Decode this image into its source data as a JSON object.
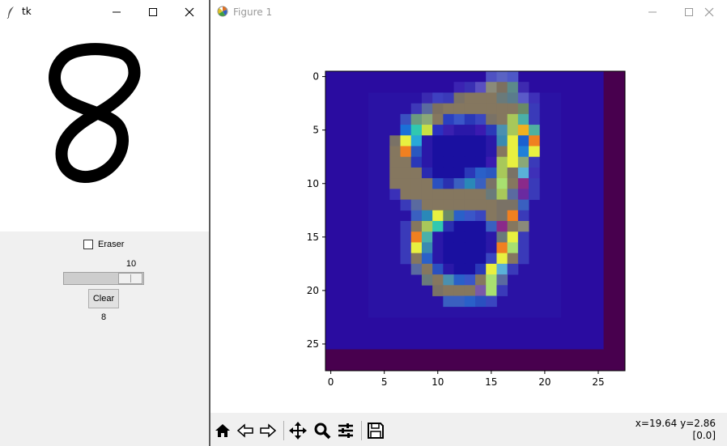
{
  "tk_window": {
    "title": "tk",
    "eraser_label": "Eraser",
    "eraser_checked": false,
    "slider_value": "10",
    "clear_label": "Clear",
    "prediction": "8",
    "icons": [
      "feather-icon",
      "minimize-icon",
      "maximize-icon",
      "close-icon"
    ]
  },
  "figure_window": {
    "title": "Figure 1",
    "toolbar": [
      "home-icon",
      "back-icon",
      "forward-icon",
      "pan-icon",
      "zoom-icon",
      "configure-subplots-icon",
      "save-icon"
    ],
    "coords_line1": "x=19.64 y=2.86",
    "coords_line2": "[0.0]"
  },
  "chart_data": {
    "type": "heatmap",
    "title": "",
    "x_ticks": [
      "0",
      "5",
      "10",
      "15",
      "20",
      "25"
    ],
    "y_ticks": [
      "0",
      "5",
      "10",
      "15",
      "20",
      "25"
    ],
    "xlim": [
      -0.5,
      27.5
    ],
    "ylim": [
      27.5,
      -0.5
    ],
    "grid": false,
    "shape": [
      28,
      28
    ],
    "background_color": "#2a0ca0",
    "border_color": "#48004e",
    "border_region": {
      "right_columns": [
        26,
        27
      ],
      "bottom_rows": [
        26,
        27
      ]
    },
    "overlay_rows": [
      {
        "row": 0,
        "cells": {
          "15": "#4f52c2",
          "16": "#5a63c4",
          "17": "#4e58c8"
        }
      },
      {
        "row": 1,
        "cells": {
          "12": "#3b23b2",
          "13": "#3a30b3",
          "14": "#5a50c0",
          "15": "#8a8a7a",
          "16": "#7c7060",
          "17": "#5c8a8a",
          "18": "#3e2ab0"
        }
      },
      {
        "row": 2,
        "cells": {
          "9": "#3a2ab0",
          "10": "#3e40c0",
          "11": "#3a3ab9",
          "12": "#7a7266",
          "13": "#85775f",
          "14": "#85775f",
          "15": "#85775f",
          "16": "#6a7a7a",
          "17": "#5a7c8c",
          "18": "#5a5ac8",
          "19": "#3e30b8"
        }
      },
      {
        "row": 3,
        "cells": {
          "8": "#3e38b8",
          "9": "#5a6aa0",
          "10": "#7c7060",
          "11": "#85775f",
          "12": "#85775f",
          "13": "#85775f",
          "14": "#85775f",
          "15": "#85775f",
          "16": "#85775f",
          "17": "#85775f",
          "18": "#6a8a66",
          "19": "#3a3ab9"
        }
      },
      {
        "row": 4,
        "cells": {
          "7": "#3a50c0",
          "8": "#6a9a80",
          "9": "#8aa878",
          "10": "#85775f",
          "11": "#2a40c0",
          "12": "#3a56c8",
          "13": "#2a38b8",
          "14": "#3a46c0",
          "15": "#7a7266",
          "16": "#85775f",
          "17": "#a8c85a",
          "18": "#4ab0a8",
          "19": "#3a3ab9"
        }
      },
      {
        "row": 5,
        "cells": {
          "7": "#1a70d8",
          "8": "#30c8b0",
          "9": "#c8e044",
          "10": "#2a30c0",
          "11": "#3a20b0",
          "12": "#2a18a8",
          "13": "#2a18a8",
          "14": "#3a1ab0",
          "15": "#2a3ab8",
          "16": "#4a90b0",
          "17": "#a8c85a",
          "18": "#f0b020",
          "19": "#50b0a0"
        }
      },
      {
        "row": 6,
        "cells": {
          "6": "#7a7266",
          "7": "#e8f040",
          "8": "#28a8d8",
          "9": "#2a18a8",
          "10": "#1a10a0",
          "11": "#1a10a0",
          "12": "#1a10a0",
          "13": "#1a10a0",
          "14": "#1a10a0",
          "15": "#2a18a8",
          "16": "#3a8ab0",
          "17": "#e8f040",
          "18": "#1a60d0",
          "19": "#f08020"
        }
      },
      {
        "row": 7,
        "cells": {
          "6": "#85775f",
          "7": "#f08020",
          "8": "#2a58c0",
          "9": "#2a18a8",
          "10": "#1a10a0",
          "11": "#1a10a0",
          "12": "#1a10a0",
          "13": "#1a10a0",
          "14": "#1a10a0",
          "15": "#2a18a8",
          "16": "#85775f",
          "17": "#e8f040",
          "18": "#2080d8",
          "19": "#e8f040"
        }
      },
      {
        "row": 8,
        "cells": {
          "6": "#85775f",
          "7": "#85775f",
          "8": "#2a38b8",
          "9": "#2a18a8",
          "10": "#1a10a0",
          "11": "#1a10a0",
          "12": "#1a10a0",
          "13": "#1a10a0",
          "14": "#1a10a0",
          "15": "#3a1ab0",
          "16": "#a8c85a",
          "17": "#e8f040",
          "18": "#8aa878",
          "19": "#3a3ab9"
        }
      },
      {
        "row": 9,
        "cells": {
          "6": "#85775f",
          "7": "#85775f",
          "8": "#85775f",
          "9": "#2a2ab0",
          "10": "#1a10a0",
          "11": "#1a10a0",
          "12": "#1a10a0",
          "13": "#2a38b8",
          "14": "#2a60c8",
          "15": "#2a58c0",
          "16": "#a8c85a",
          "17": "#7a7266",
          "18": "#5ab0d8",
          "19": "#3e30b8"
        }
      },
      {
        "row": 10,
        "cells": {
          "6": "#85775f",
          "7": "#85775f",
          "8": "#85775f",
          "9": "#85775f",
          "10": "#2a50c0",
          "11": "#2a30b0",
          "12": "#3a60c0",
          "13": "#2a88b8",
          "14": "#3a60c0",
          "15": "#7a7266",
          "16": "#a8e070",
          "17": "#85775f",
          "18": "#8a2a8a",
          "19": "#3a3ab9"
        }
      },
      {
        "row": 11,
        "cells": {
          "6": "#3a30b8",
          "7": "#85775f",
          "8": "#85775f",
          "9": "#85775f",
          "10": "#85775f",
          "11": "#85775f",
          "12": "#85775f",
          "13": "#85775f",
          "14": "#85775f",
          "15": "#6a7a7a",
          "16": "#a8c85a",
          "17": "#5a6aa0",
          "18": "#6a2aa0",
          "19": "#3a3ab9"
        }
      },
      {
        "row": 12,
        "cells": {
          "7": "#3a3ab9",
          "8": "#5a6aa0",
          "9": "#85775f",
          "10": "#85775f",
          "11": "#85775f",
          "12": "#85775f",
          "13": "#85775f",
          "14": "#85775f",
          "15": "#85775f",
          "16": "#7a7266",
          "17": "#7a7266",
          "18": "#3a60c0"
        }
      },
      {
        "row": 13,
        "cells": {
          "8": "#3a60c0",
          "9": "#2a88b8",
          "10": "#e8f040",
          "11": "#6a8a66",
          "12": "#2a60c8",
          "13": "#3a56c8",
          "14": "#3a46c0",
          "15": "#85775f",
          "16": "#7a7266",
          "17": "#f08020",
          "18": "#3a3ab9"
        }
      },
      {
        "row": 14,
        "cells": {
          "7": "#3a3ab9",
          "8": "#85775f",
          "9": "#a8c85a",
          "10": "#30c8b0",
          "11": "#2a30b0",
          "12": "#1a10a0",
          "13": "#1a10a0",
          "14": "#1a10a0",
          "15": "#3a60c0",
          "16": "#8a2a8a",
          "17": "#85775f",
          "18": "#8a8a7a"
        }
      },
      {
        "row": 15,
        "cells": {
          "7": "#3a3ab9",
          "8": "#f08020",
          "9": "#4ab0a8",
          "10": "#2a18a8",
          "11": "#1a10a0",
          "12": "#1a10a0",
          "13": "#1a10a0",
          "14": "#1a10a0",
          "15": "#2a18a8",
          "16": "#6a7a7a",
          "17": "#e8f040",
          "18": "#3a3ab9"
        }
      },
      {
        "row": 16,
        "cells": {
          "7": "#3a3ab9",
          "8": "#e8f040",
          "9": "#3a8ab0",
          "10": "#2a18a8",
          "11": "#1a10a0",
          "12": "#1a10a0",
          "13": "#1a10a0",
          "14": "#1a10a0",
          "15": "#2a18a8",
          "16": "#f08020",
          "17": "#a8e070",
          "18": "#3a3ab9"
        }
      },
      {
        "row": 17,
        "cells": {
          "7": "#3a3ab9",
          "8": "#85775f",
          "9": "#2a60c8",
          "10": "#2a18a8",
          "11": "#1a10a0",
          "12": "#1a10a0",
          "13": "#1a10a0",
          "14": "#1a10a0",
          "15": "#3a46c0",
          "16": "#e8f040",
          "17": "#85775f",
          "18": "#3a3ab9"
        }
      },
      {
        "row": 18,
        "cells": {
          "8": "#5a6aa0",
          "9": "#85775f",
          "10": "#2a50c0",
          "11": "#2a18a8",
          "12": "#1a10a0",
          "13": "#1a10a0",
          "14": "#2a38b8",
          "15": "#e8f040",
          "16": "#5ab0d8",
          "17": "#3a3ab9"
        }
      },
      {
        "row": 19,
        "cells": {
          "9": "#6a7a7a",
          "10": "#85775f",
          "11": "#4a90b0",
          "12": "#2a60c8",
          "13": "#3a56c8",
          "14": "#85775f",
          "15": "#a8e070",
          "16": "#5a6aa0"
        }
      },
      {
        "row": 20,
        "cells": {
          "10": "#7a7266",
          "11": "#85775f",
          "12": "#85775f",
          "13": "#85775f",
          "14": "#7a5aa8",
          "15": "#a8e070",
          "16": "#3a3ab9"
        }
      },
      {
        "row": 21,
        "cells": {
          "11": "#3a60c0",
          "12": "#3a60c0",
          "13": "#2a60c8",
          "14": "#2a50c0",
          "15": "#3a46c0"
        }
      }
    ],
    "shadow_region": {
      "rows": [
        2,
        22
      ],
      "cols": [
        4,
        21
      ],
      "color": "#2a12a4"
    }
  }
}
